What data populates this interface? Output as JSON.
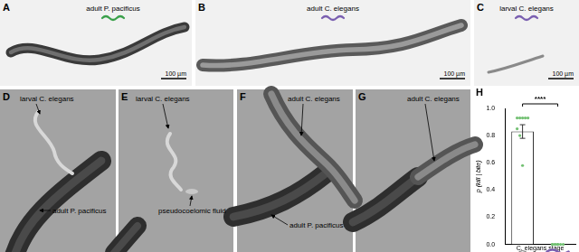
{
  "panels": [
    {
      "label": "A",
      "caption": "adult P. pacificus",
      "scale_bar": "100 µm"
    },
    {
      "label": "B",
      "caption": "adult C. elegans",
      "scale_bar": "100 µm"
    },
    {
      "label": "C",
      "caption": "larval C. elegans",
      "scale_bar": "100 µm"
    },
    {
      "label": "D",
      "annotations": [
        "larval C. elegans",
        "adult P. pacificus"
      ]
    },
    {
      "label": "E",
      "annotations": [
        "larval C. elegans",
        "pseudocoelomic fluid"
      ]
    },
    {
      "label": "F",
      "annotations": [
        "adult C. elegans",
        "adult P. pacificus"
      ]
    },
    {
      "label": "G",
      "annotations": [
        "adult C. elegans"
      ]
    }
  ],
  "chart_data": {
    "type": "bar",
    "title": "H",
    "y_label": "p (kill | bite)",
    "x_label": "C. elegans stage",
    "categories": [
      null,
      null
    ],
    "values": [
      0.83,
      0
    ],
    "errors": [
      0.05,
      0
    ],
    "points": [
      [
        0.93,
        0.93,
        0.93,
        0.93,
        0.93,
        0.85,
        0.8,
        0.58
      ],
      [
        0,
        0,
        0,
        0,
        0,
        0,
        0,
        0
      ]
    ],
    "significance": {
      "between": [
        0,
        1
      ],
      "label": "****"
    },
    "color": "#ffffff",
    "ylim": [
      0,
      1
    ],
    "yticks": [
      {
        "value": 0,
        "label": "0.0"
      },
      {
        "value": 0.2,
        "label": "0.2"
      },
      {
        "value": 0.4,
        "label": "0.4"
      },
      {
        "value": 0.6,
        "label": "0.6"
      },
      {
        "value": 0.8,
        "label": "0.8"
      },
      {
        "value": 1,
        "label": "1.0"
      }
    ],
    "grid": false,
    "tick_labels": "y"
  }
}
